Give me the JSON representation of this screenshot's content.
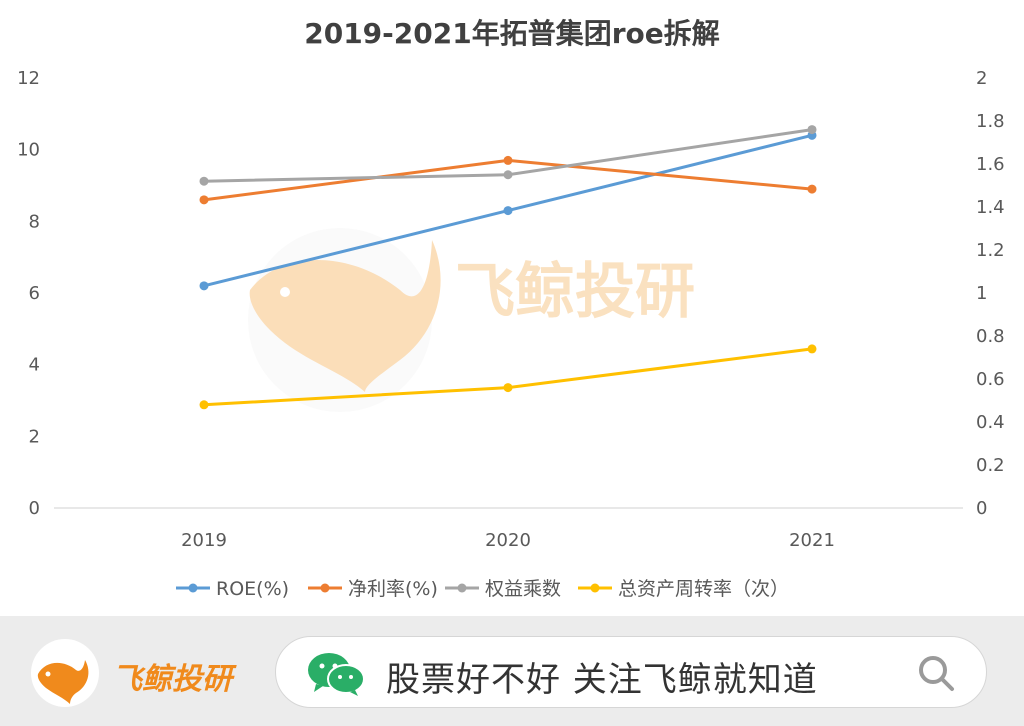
{
  "chart_data": {
    "type": "line",
    "title": "2019-2021年拓普集团roe拆解",
    "categories": [
      "2019",
      "2020",
      "2021"
    ],
    "y_left": {
      "min": 0,
      "max": 12,
      "ticks": [
        "0",
        "2",
        "4",
        "6",
        "8",
        "10",
        "12"
      ]
    },
    "y_right": {
      "min": 0,
      "max": 2,
      "ticks": [
        "0",
        "0.2",
        "0.4",
        "0.6",
        "0.8",
        "1",
        "1.2",
        "1.4",
        "1.6",
        "1.8",
        "2"
      ]
    },
    "grid": false,
    "legend_position": "bottom",
    "series": [
      {
        "name": "ROE(%)",
        "axis": "left",
        "color": "#5b9bd5",
        "values": [
          6.2,
          8.3,
          10.4
        ]
      },
      {
        "name": "净利率(%)",
        "axis": "left",
        "color": "#ed7d31",
        "values": [
          8.6,
          9.7,
          8.9
        ]
      },
      {
        "name": "权益乘数",
        "axis": "right",
        "color": "#a5a5a5",
        "values": [
          1.52,
          1.55,
          1.76
        ]
      },
      {
        "name": "总资产周转率（次）",
        "axis": "right",
        "color": "#ffc000",
        "values": [
          0.48,
          0.56,
          0.74
        ]
      }
    ]
  },
  "watermark": {
    "text": "飞鲸投研"
  },
  "footer": {
    "brand": "飞鲸投研",
    "search_text": "股票好不好  关注飞鲸就知道",
    "wechat_icon": "wechat-icon",
    "search_icon": "search-icon"
  }
}
